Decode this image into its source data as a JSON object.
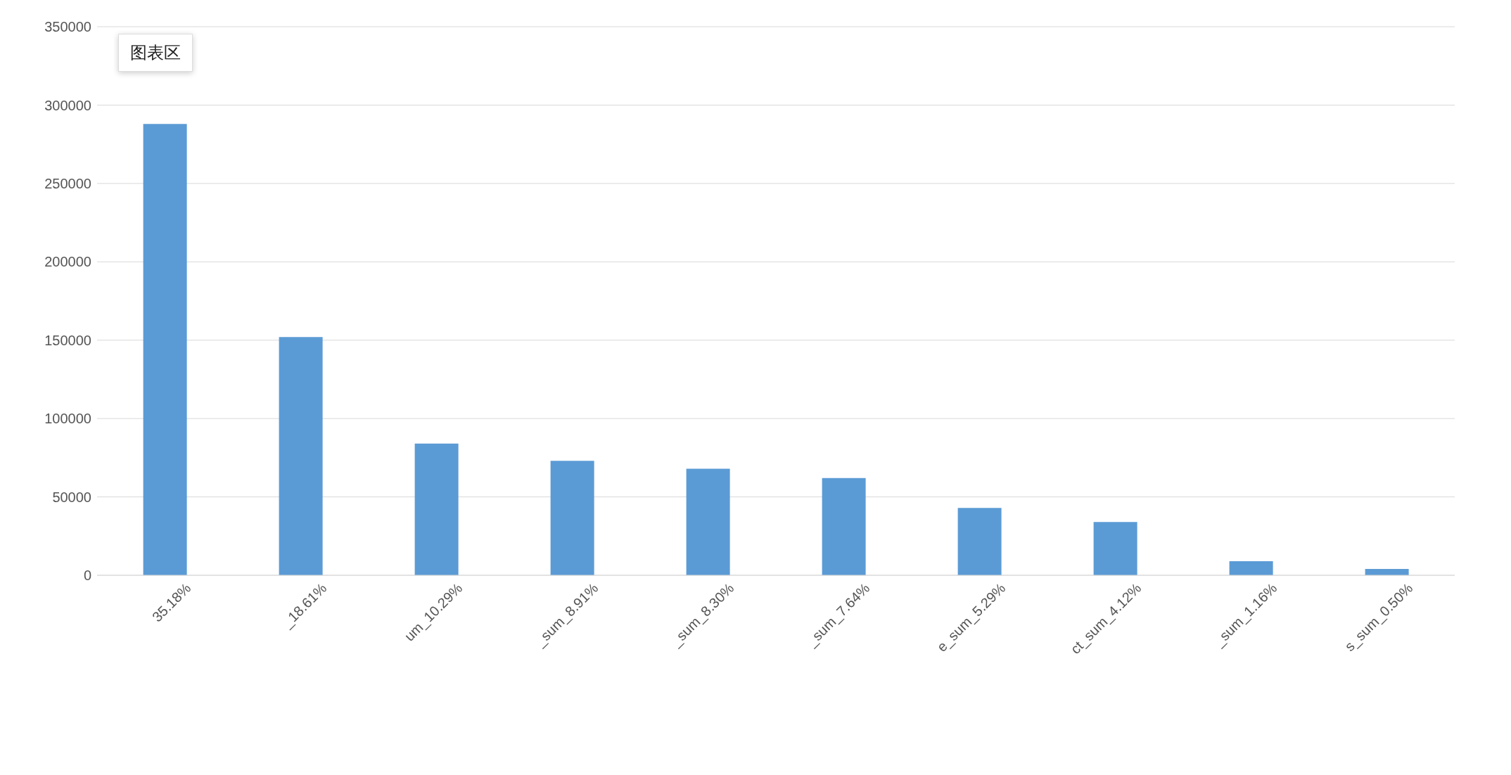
{
  "chart_data": {
    "type": "bar",
    "categories": [
      "35.18%",
      "_18.61%",
      "um_10.29%",
      "_sum_8.91%",
      "_sum_8.30%",
      "_sum_7.64%",
      "e_sum_5.29%",
      "ct_sum_4.12%",
      "_sum_1.16%",
      "s_sum_0.50%"
    ],
    "values": [
      288000,
      152000,
      84000,
      73000,
      68000,
      62000,
      43000,
      34000,
      9000,
      4000
    ],
    "color": "#5b9bd5",
    "ylim": [
      0,
      350000
    ],
    "yticks": [
      0,
      50000,
      100000,
      150000,
      200000,
      250000,
      300000,
      350000
    ],
    "grid": "y",
    "annotations": [
      "图表区"
    ]
  }
}
